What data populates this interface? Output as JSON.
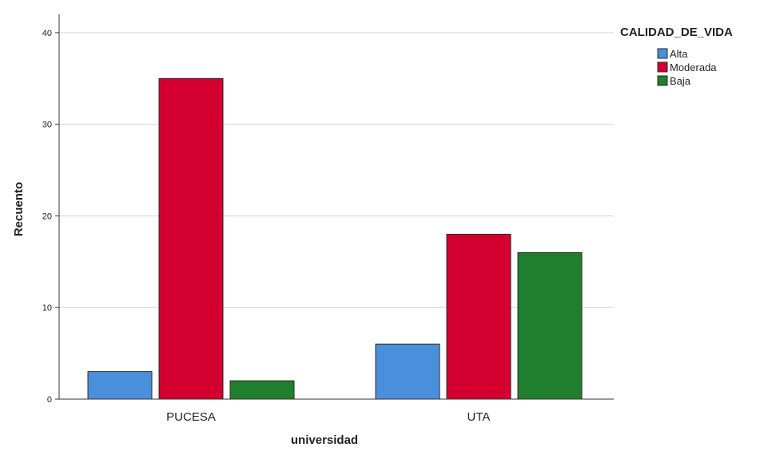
{
  "chart_data": {
    "type": "bar",
    "title": "",
    "xlabel": "universidad",
    "ylabel": "Recuento",
    "categories": [
      "PUCESA",
      "UTA"
    ],
    "series": [
      {
        "name": "Alta",
        "color": "#4a8fdc",
        "values": [
          3,
          6
        ]
      },
      {
        "name": "Moderada",
        "color": "#d3002f",
        "values": [
          35,
          18
        ]
      },
      {
        "name": "Baja",
        "color": "#1f7f2c",
        "values": [
          2,
          16
        ]
      }
    ],
    "ylim": [
      0,
      42
    ],
    "yticks": [
      0,
      10,
      20,
      30,
      40
    ],
    "grid": true,
    "legend": {
      "title": "CALIDAD_DE_VIDA",
      "placement": "top-right"
    }
  }
}
